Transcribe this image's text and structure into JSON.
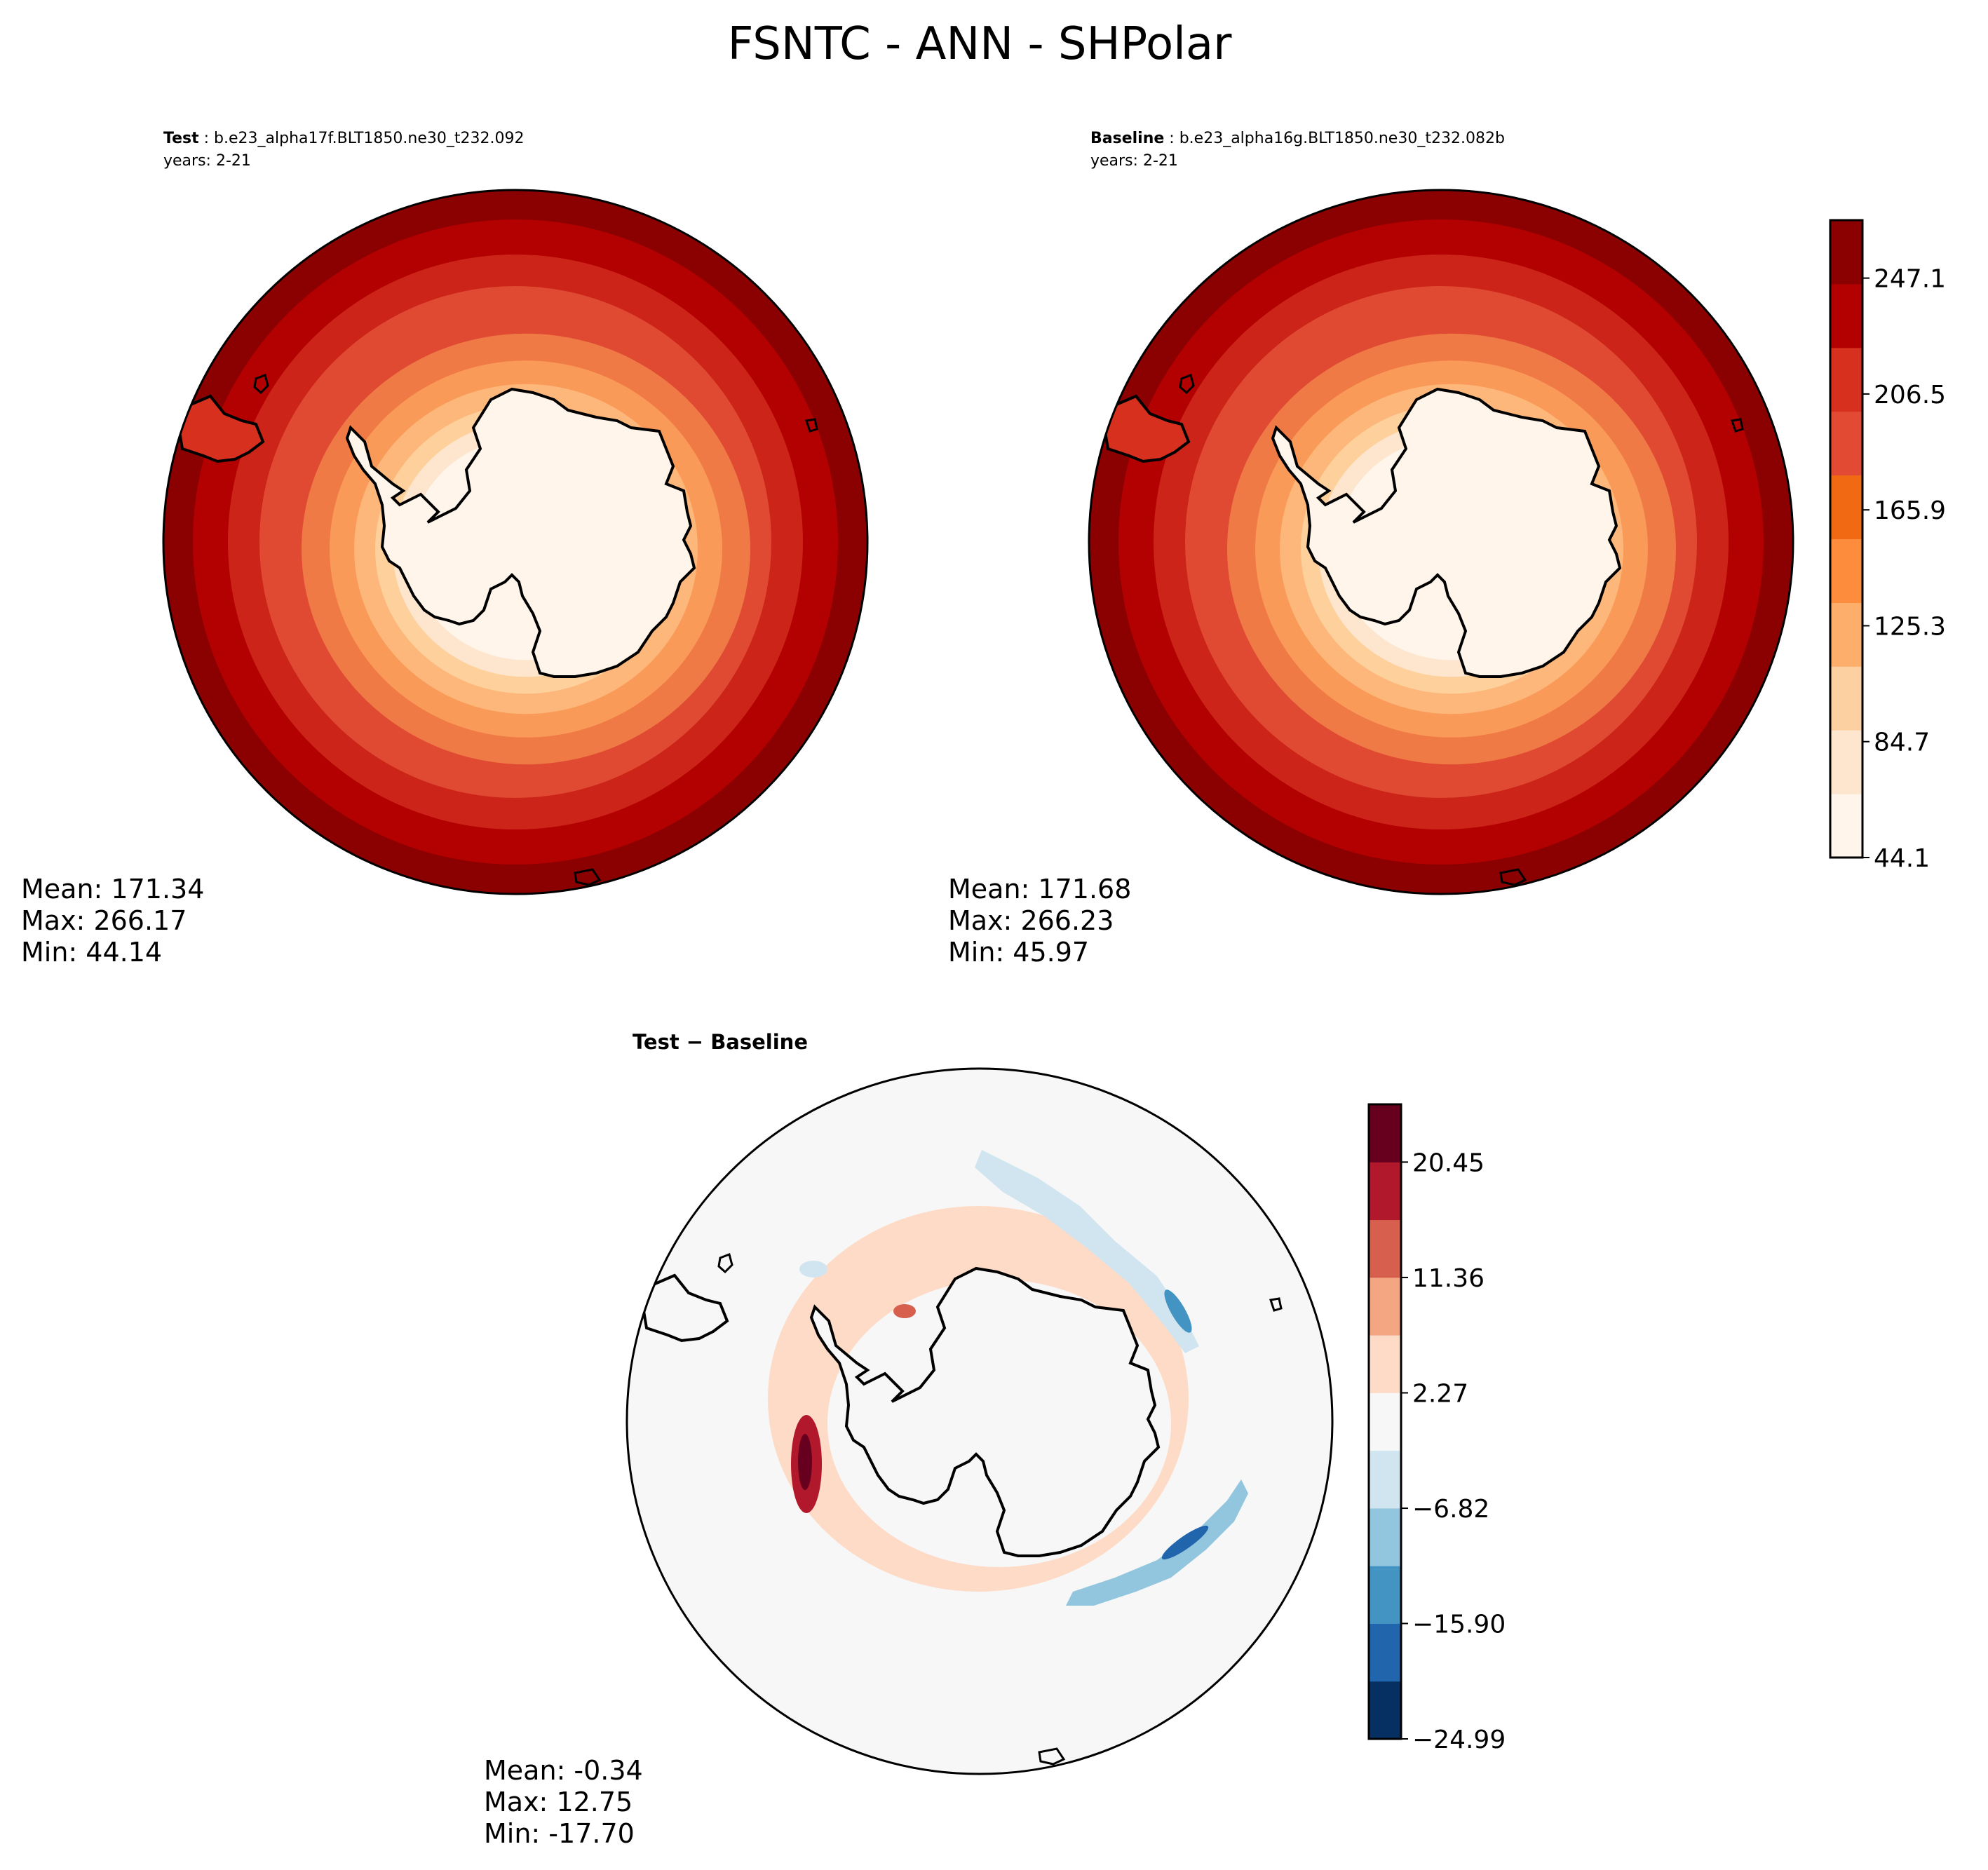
{
  "figure": {
    "title": "FSNTC - ANN - SHPolar"
  },
  "panels": {
    "test": {
      "label": "Test",
      "case": ": b.e23_alpha17f.BLT1850.ne30_t232.092",
      "years": "years: 2-21",
      "stats": {
        "mean": "Mean: 171.34",
        "max": "Max: 266.17",
        "min": "Min: 44.14"
      }
    },
    "baseline": {
      "label": "Baseline",
      "case": ": b.e23_alpha16g.BLT1850.ne30_t232.082b",
      "years": "years: 2-21",
      "stats": {
        "mean": "Mean: 171.68",
        "max": "Max: 266.23",
        "min": "Min: 45.97"
      }
    },
    "diff": {
      "title": "Test − Baseline",
      "stats": {
        "mean": "Mean: -0.34",
        "max": "Max: 12.75",
        "min": "Min: -17.70"
      }
    }
  },
  "colorbars": {
    "main": {
      "ticks": [
        "44.1",
        "84.7",
        "125.3",
        "165.9",
        "206.5",
        "247.1"
      ],
      "colors": [
        "#fff5eb",
        "#fee6ce",
        "#fdd0a2",
        "#fdae6b",
        "#fd8d3c",
        "#f16913",
        "#e34a33",
        "#d7301f",
        "#b30000",
        "#8b0000"
      ]
    },
    "diff": {
      "ticks": [
        "−24.99",
        "−15.90",
        "−6.82",
        "2.27",
        "11.36",
        "20.45"
      ],
      "colors": [
        "#053061",
        "#2166ac",
        "#4393c3",
        "#92c5de",
        "#d1e5f0",
        "#f7f7f7",
        "#fddbc7",
        "#f4a582",
        "#d6604d",
        "#b2182b",
        "#67001f"
      ]
    }
  },
  "map_colors": {
    "main_rings": [
      "#8b0000",
      "#b30000",
      "#cc2418",
      "#e04a33",
      "#f07a45",
      "#fa9a58",
      "#fdb77a",
      "#fed09c",
      "#fee6ce",
      "#fff5eb"
    ],
    "diff_background": "#f7f7f7",
    "diff_positive": [
      "#fddbc7",
      "#f4a582",
      "#d6604d",
      "#b2182b",
      "#67001f"
    ],
    "diff_negative": [
      "#d1e5f0",
      "#92c5de",
      "#4393c3",
      "#2166ac"
    ]
  }
}
